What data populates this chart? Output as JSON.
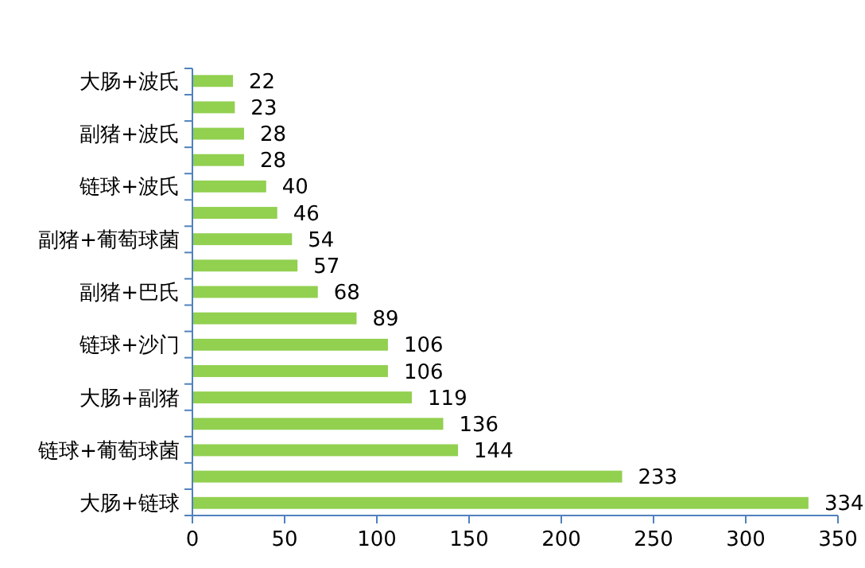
{
  "chart_data": {
    "type": "bar",
    "orientation": "horizontal",
    "categories": [
      "大肠+波氏",
      null,
      "副猪+波氏",
      null,
      "链球+波氏",
      null,
      "副猪+葡萄球菌",
      null,
      "副猪+巴氏",
      null,
      "链球+沙门",
      null,
      "大肠+副猪",
      null,
      "链球+葡萄球菌",
      null,
      "大肠+链球"
    ],
    "values": [
      22,
      23,
      28,
      28,
      40,
      46,
      54,
      57,
      68,
      89,
      106,
      106,
      119,
      136,
      144,
      233,
      334
    ],
    "color": "#92d050",
    "xlim": [
      0,
      350
    ],
    "xticks": [
      0,
      50,
      100,
      150,
      200,
      250,
      300,
      350
    ],
    "data_labels": true,
    "grid": false
  }
}
